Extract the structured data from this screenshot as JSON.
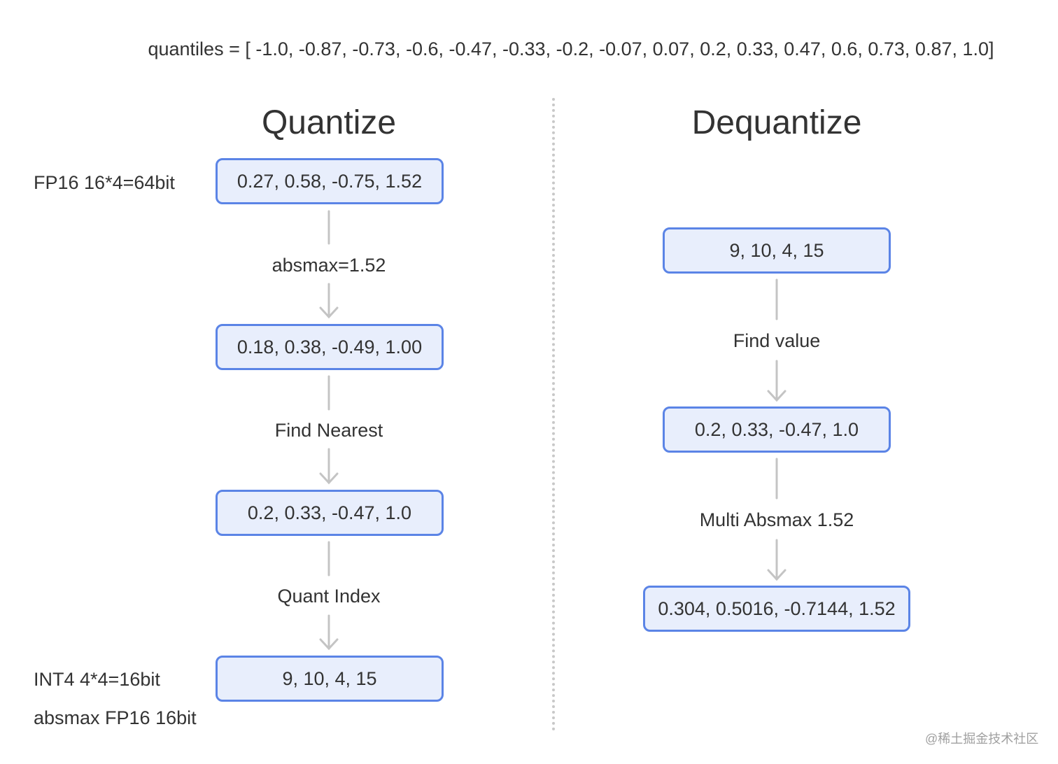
{
  "quantiles_line": "quantiles = [ -1.0, -0.87, -0.73, -0.6, -0.47, -0.33, -0.2, -0.07, 0.07, 0.2, 0.33, 0.47, 0.6, 0.73, 0.87, 1.0]",
  "quantize": {
    "title": "Quantize",
    "boxes": [
      "0.27, 0.58, -0.75, 1.52",
      "0.18, 0.38, -0.49, 1.00",
      "0.2, 0.33, -0.47, 1.0",
      "9, 10, 4, 15"
    ],
    "steps": [
      "absmax=1.52",
      "Find Nearest",
      "Quant Index"
    ],
    "side_labels": {
      "input": "FP16 16*4=64bit",
      "output_int": "INT4 4*4=16bit",
      "output_absmax": "absmax FP16 16bit"
    }
  },
  "dequantize": {
    "title": "Dequantize",
    "boxes": [
      "9, 10, 4, 15",
      "0.2, 0.33, -0.47, 1.0",
      "0.304, 0.5016, -0.7144, 1.52"
    ],
    "steps": [
      "Find value",
      "Multi Absmax 1.52"
    ]
  },
  "watermark": "@稀土掘金技术社区",
  "colors": {
    "box_border": "#5b84e6",
    "box_fill": "#e8eefc",
    "arrow": "#c4c4c4",
    "text": "#333333",
    "divider": "#c8c8c8"
  }
}
